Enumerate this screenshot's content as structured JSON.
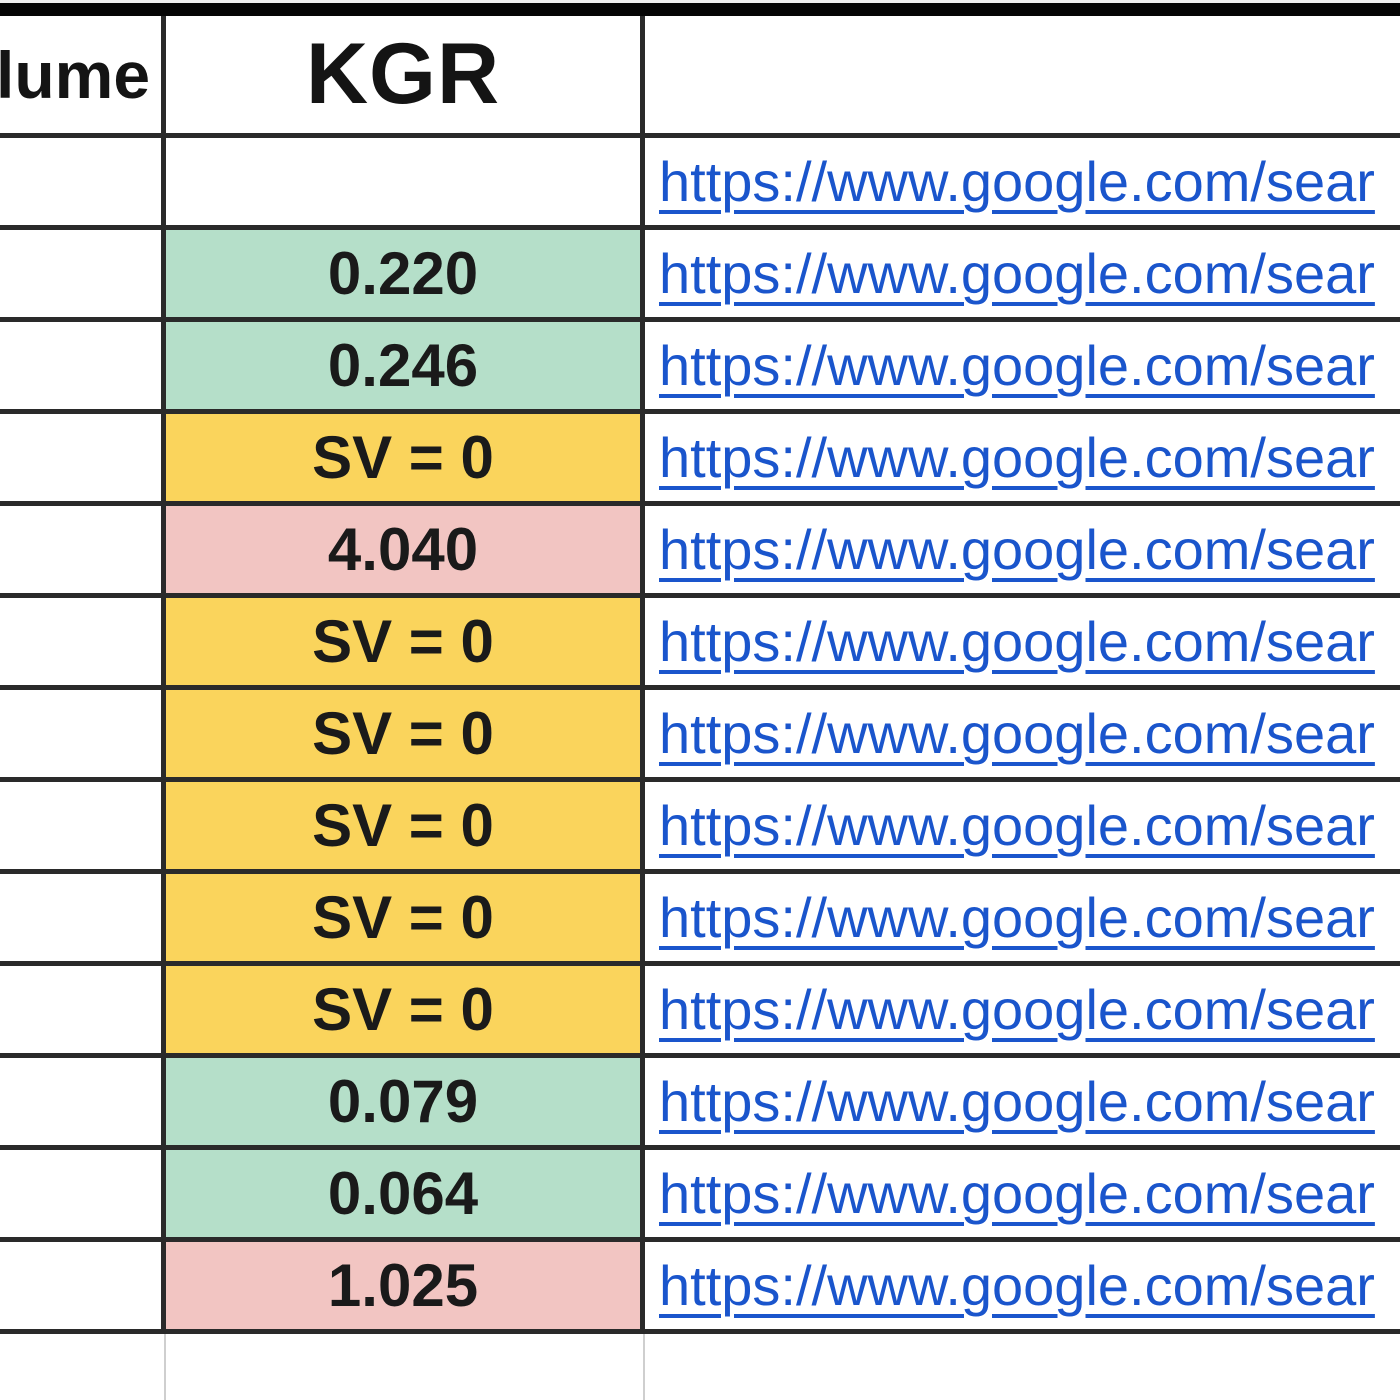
{
  "table": {
    "headers": {
      "volume_partial": "lume",
      "kgr": "KGR",
      "url": ""
    },
    "colors": {
      "green": "#b5dfc9",
      "yellow": "#fad45c",
      "red": "#f2c5c2",
      "link_blue": "#1a55cc",
      "border_dark": "#2a2a2a",
      "gridline_light": "#cfcfcf"
    },
    "rows": [
      {
        "volume": "",
        "kgr": "",
        "kgr_color": "none",
        "url": "https://www.google.com/sear"
      },
      {
        "volume": "",
        "kgr": "0.220",
        "kgr_color": "green",
        "url": "https://www.google.com/sear"
      },
      {
        "volume": "",
        "kgr": "0.246",
        "kgr_color": "green",
        "url": "https://www.google.com/sear"
      },
      {
        "volume": "",
        "kgr": "SV = 0",
        "kgr_color": "yellow",
        "url": "https://www.google.com/sear"
      },
      {
        "volume": "",
        "kgr": "4.040",
        "kgr_color": "red",
        "url": "https://www.google.com/sear"
      },
      {
        "volume": "",
        "kgr": "SV = 0",
        "kgr_color": "yellow",
        "url": "https://www.google.com/sear"
      },
      {
        "volume": "",
        "kgr": "SV = 0",
        "kgr_color": "yellow",
        "url": "https://www.google.com/sear"
      },
      {
        "volume": "",
        "kgr": "SV = 0",
        "kgr_color": "yellow",
        "url": "https://www.google.com/sear"
      },
      {
        "volume": "",
        "kgr": "SV = 0",
        "kgr_color": "yellow",
        "url": "https://www.google.com/sear"
      },
      {
        "volume": "",
        "kgr": "SV = 0",
        "kgr_color": "yellow",
        "url": "https://www.google.com/sear"
      },
      {
        "volume": "",
        "kgr": "0.079",
        "kgr_color": "green",
        "url": "https://www.google.com/sear"
      },
      {
        "volume": "",
        "kgr": "0.064",
        "kgr_color": "green",
        "url": "https://www.google.com/sear"
      },
      {
        "volume": "",
        "kgr": "1.025",
        "kgr_color": "red",
        "url": "https://www.google.com/sear"
      }
    ],
    "bottom_partial_row": {
      "volume": "",
      "kgr": "",
      "url": ""
    }
  }
}
